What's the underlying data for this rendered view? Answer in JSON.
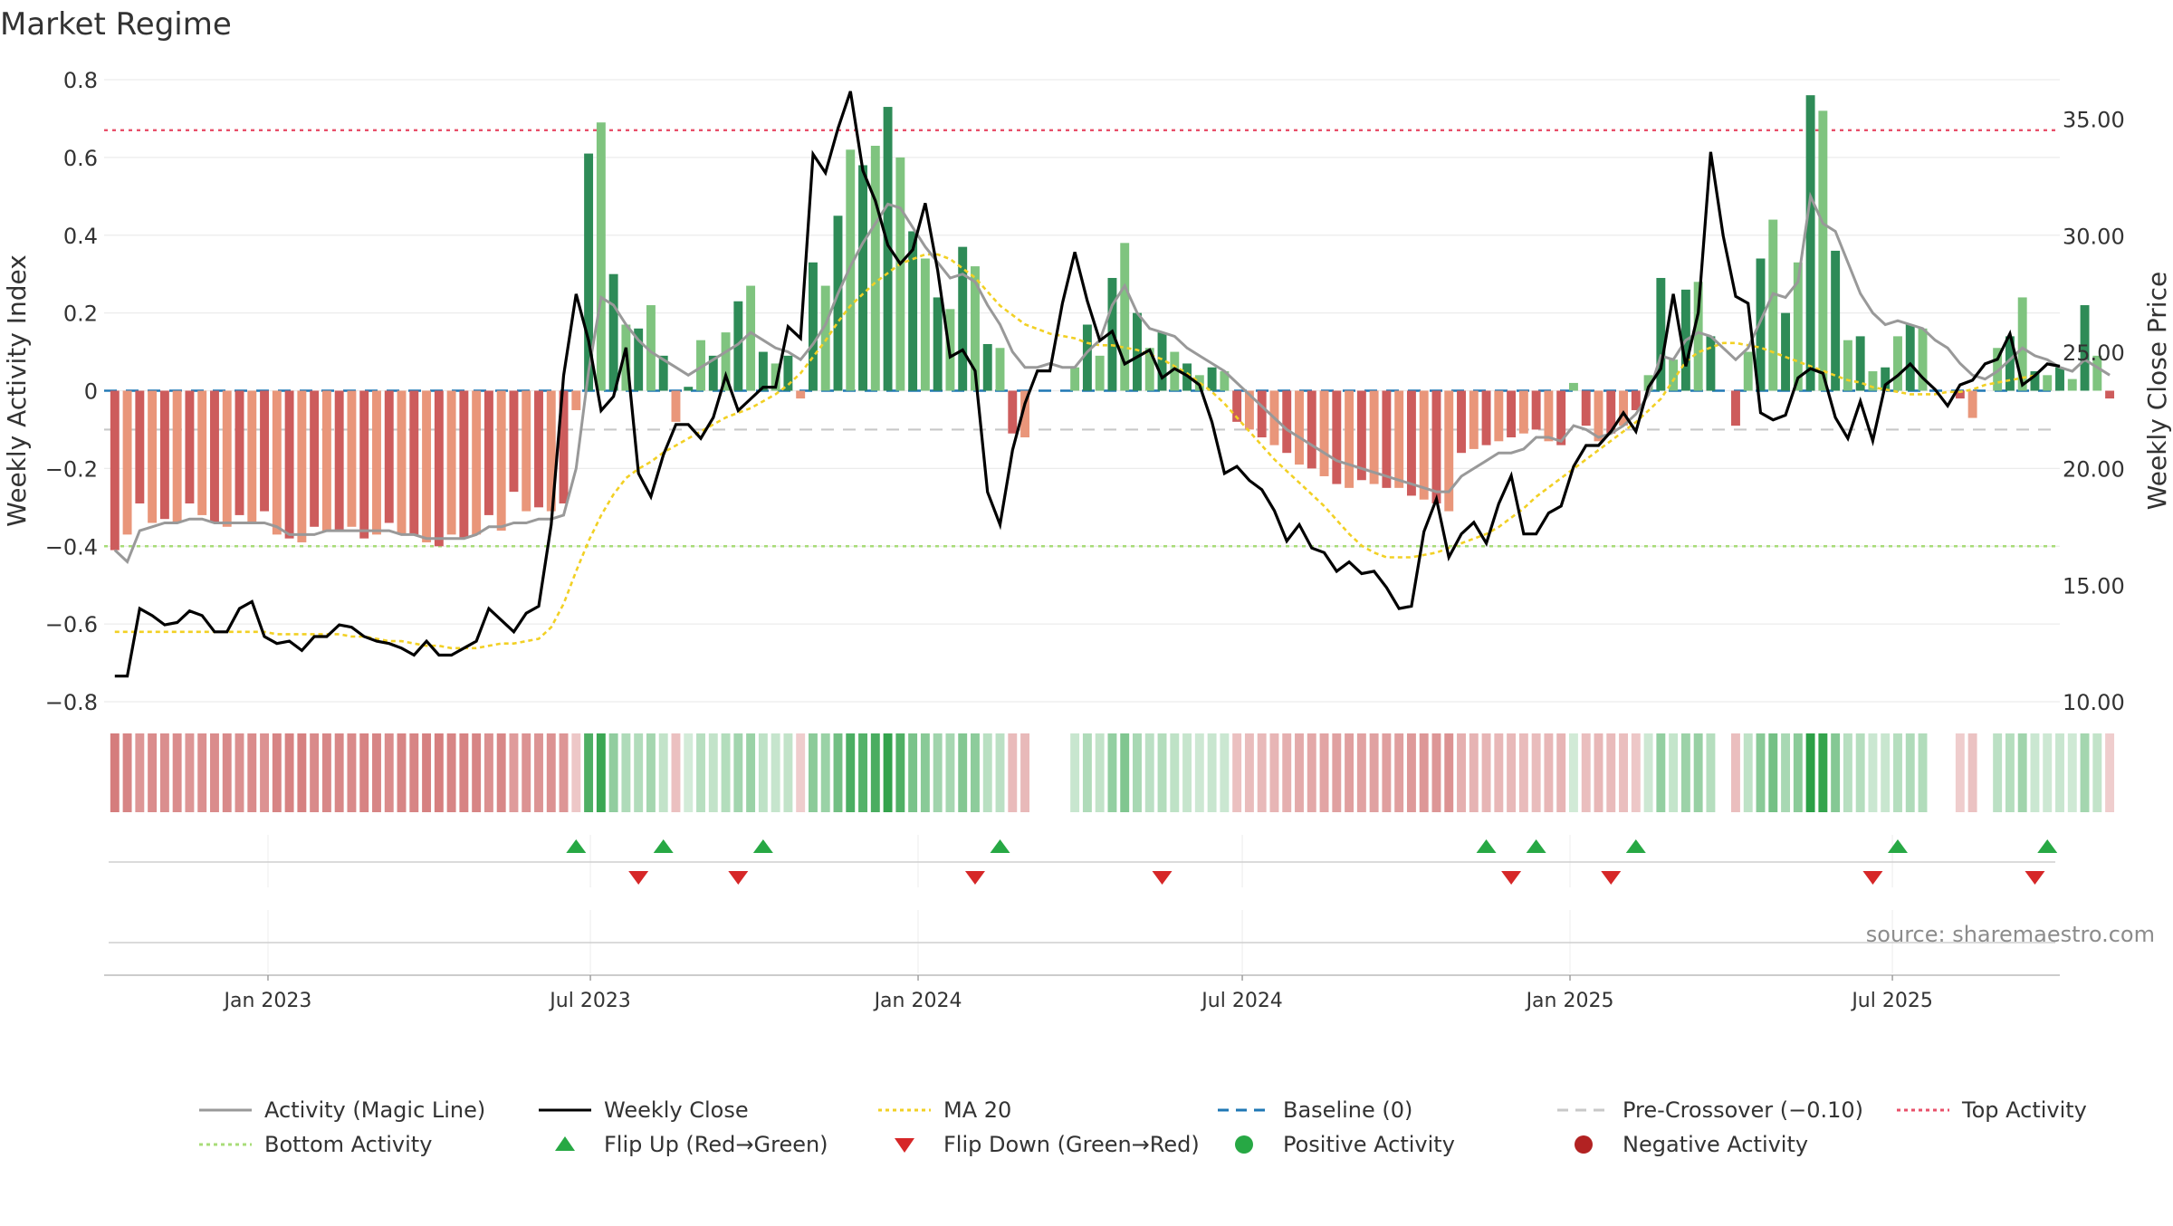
{
  "title": "Market Regime",
  "source": "source: sharemaestro.com",
  "colors": {
    "pos_dark": "#2e8b57",
    "pos_light": "#7fc47f",
    "neg_dark": "#cd5c5c",
    "neg_light": "#e9967a",
    "magic": "#999999",
    "close": "#000000",
    "ma20": "#f2d024",
    "baseline": "#1f77b4",
    "pre": "#c8c8c8",
    "top": "#e8506a",
    "bottom": "#a8dc78",
    "flip_up": "#27a844",
    "flip_down": "#d62728"
  },
  "chart_data": {
    "type": "bar",
    "title": "Market Regime",
    "left_axis": {
      "label": "Weekly Activity Index",
      "range": [
        -0.8,
        0.8
      ],
      "ticks": [
        "0.8",
        "0.6",
        "0.4",
        "0.2",
        "0",
        "−0.2",
        "−0.4",
        "−0.6",
        "−0.8"
      ]
    },
    "right_axis": {
      "label": "Weekly Close Price",
      "range": [
        10,
        36.7
      ],
      "ticks": [
        "35.00",
        "30.00",
        "25.00",
        "20.00",
        "15.00",
        "10.00"
      ]
    },
    "x_range": [
      "2022-10-01",
      "2025-10-03"
    ],
    "x_ticks": [
      {
        "label": "Jan 2023",
        "date": "2023-01-01"
      },
      {
        "label": "Jul 2023",
        "date": "2023-07-01"
      },
      {
        "label": "Jan 2024",
        "date": "2024-01-01"
      },
      {
        "label": "Jul 2024",
        "date": "2024-07-01"
      },
      {
        "label": "Jan 2025",
        "date": "2025-01-01"
      },
      {
        "label": "Jul 2025",
        "date": "2025-07-01"
      }
    ],
    "reference_lines": {
      "baseline": 0,
      "pre_crossover": -0.1,
      "top_activity": 0.67,
      "bottom_activity": -0.4
    },
    "week_start": "2022-10-07",
    "activity": [
      -0.41,
      -0.37,
      -0.29,
      -0.34,
      -0.33,
      -0.34,
      -0.29,
      -0.32,
      -0.34,
      -0.35,
      -0.32,
      -0.34,
      -0.31,
      -0.37,
      -0.38,
      -0.39,
      -0.35,
      -0.36,
      -0.36,
      -0.35,
      -0.38,
      -0.37,
      -0.34,
      -0.37,
      -0.37,
      -0.39,
      -0.4,
      -0.37,
      -0.38,
      -0.37,
      -0.32,
      -0.36,
      -0.26,
      -0.31,
      -0.3,
      -0.31,
      -0.29,
      -0.05,
      0.61,
      0.69,
      0.3,
      0.17,
      0.16,
      0.22,
      0.09,
      -0.08,
      0.01,
      0.13,
      0.09,
      0.15,
      0.23,
      0.27,
      0.1,
      0.07,
      0.09,
      -0.02,
      0.33,
      0.27,
      0.45,
      0.62,
      0.58,
      0.63,
      0.73,
      0.6,
      0.41,
      0.34,
      0.24,
      0.21,
      0.37,
      0.32,
      0.12,
      0.11,
      -0.11,
      -0.12,
      0.0,
      0.0,
      0.0,
      0.06,
      0.17,
      0.09,
      0.29,
      0.38,
      0.2,
      0.11,
      0.15,
      0.1,
      0.07,
      0.04,
      0.06,
      0.05,
      -0.08,
      -0.1,
      -0.12,
      -0.14,
      -0.16,
      -0.19,
      -0.2,
      -0.22,
      -0.24,
      -0.25,
      -0.23,
      -0.24,
      -0.25,
      -0.25,
      -0.27,
      -0.28,
      -0.29,
      -0.31,
      -0.16,
      -0.15,
      -0.14,
      -0.13,
      -0.12,
      -0.11,
      -0.1,
      -0.13,
      -0.14,
      0.02,
      -0.09,
      -0.13,
      -0.11,
      -0.09,
      -0.05,
      0.04,
      0.29,
      0.08,
      0.26,
      0.28,
      0.14,
      0.0,
      -0.09,
      0.1,
      0.34,
      0.44,
      0.2,
      0.33,
      0.76,
      0.72,
      0.36,
      0.13,
      0.14,
      0.05,
      0.06,
      0.14,
      0.17,
      0.16,
      0.0,
      0.0,
      -0.02,
      -0.07,
      0.0,
      0.11,
      0.14,
      0.24,
      0.05,
      0.04,
      0.06,
      0.03,
      0.22,
      0.09,
      -0.02
    ],
    "magic_line": [
      -0.41,
      -0.44,
      -0.36,
      -0.35,
      -0.34,
      -0.34,
      -0.33,
      -0.33,
      -0.34,
      -0.34,
      -0.34,
      -0.34,
      -0.34,
      -0.35,
      -0.37,
      -0.37,
      -0.37,
      -0.36,
      -0.36,
      -0.36,
      -0.36,
      -0.36,
      -0.36,
      -0.37,
      -0.37,
      -0.38,
      -0.38,
      -0.38,
      -0.38,
      -0.37,
      -0.35,
      -0.35,
      -0.34,
      -0.34,
      -0.33,
      -0.33,
      -0.32,
      -0.2,
      0.05,
      0.24,
      0.22,
      0.17,
      0.13,
      0.1,
      0.08,
      0.06,
      0.04,
      0.06,
      0.08,
      0.1,
      0.12,
      0.15,
      0.13,
      0.11,
      0.1,
      0.08,
      0.12,
      0.17,
      0.25,
      0.32,
      0.38,
      0.43,
      0.48,
      0.47,
      0.42,
      0.37,
      0.33,
      0.29,
      0.3,
      0.28,
      0.22,
      0.17,
      0.1,
      0.06,
      0.06,
      0.07,
      0.06,
      0.06,
      0.1,
      0.13,
      0.22,
      0.27,
      0.2,
      0.16,
      0.15,
      0.14,
      0.11,
      0.09,
      0.07,
      0.05,
      0.02,
      -0.01,
      -0.04,
      -0.07,
      -0.1,
      -0.12,
      -0.14,
      -0.16,
      -0.18,
      -0.19,
      -0.2,
      -0.21,
      -0.22,
      -0.23,
      -0.24,
      -0.25,
      -0.26,
      -0.26,
      -0.22,
      -0.2,
      -0.18,
      -0.16,
      -0.16,
      -0.15,
      -0.12,
      -0.12,
      -0.13,
      -0.09,
      -0.1,
      -0.12,
      -0.11,
      -0.09,
      -0.06,
      -0.01,
      0.09,
      0.08,
      0.13,
      0.15,
      0.14,
      0.11,
      0.08,
      0.11,
      0.18,
      0.25,
      0.24,
      0.28,
      0.5,
      0.43,
      0.41,
      0.33,
      0.25,
      0.2,
      0.17,
      0.18,
      0.17,
      0.16,
      0.13,
      0.11,
      0.07,
      0.04,
      0.03,
      0.05,
      0.08,
      0.11,
      0.09,
      0.08,
      0.06,
      0.05,
      0.08,
      0.06,
      0.04
    ],
    "weekly_close": [
      11.1,
      11.1,
      14.0,
      13.7,
      13.3,
      13.4,
      13.9,
      13.7,
      13.0,
      13.0,
      14.0,
      14.3,
      12.8,
      12.5,
      12.6,
      12.2,
      12.8,
      12.8,
      13.3,
      13.2,
      12.8,
      12.6,
      12.5,
      12.3,
      12.0,
      12.6,
      12.0,
      12.0,
      12.3,
      12.6,
      14.0,
      13.5,
      13.0,
      13.8,
      14.1,
      17.6,
      24.0,
      27.5,
      25.5,
      22.5,
      23.1,
      25.2,
      19.8,
      18.8,
      20.6,
      21.9,
      21.9,
      21.3,
      22.2,
      24.0,
      22.5,
      23.0,
      23.5,
      23.5,
      26.1,
      25.6,
      33.5,
      32.7,
      34.6,
      36.2,
      32.8,
      31.5,
      29.6,
      28.8,
      29.4,
      31.4,
      28.5,
      24.8,
      25.1,
      24.2,
      19.0,
      17.6,
      20.8,
      22.8,
      24.2,
      24.2,
      27.1,
      29.3,
      27.2,
      25.5,
      25.9,
      24.5,
      24.8,
      25.1,
      23.9,
      24.3,
      24.0,
      23.6,
      22.0,
      19.8,
      20.1,
      19.5,
      19.1,
      18.2,
      16.9,
      17.6,
      16.6,
      16.4,
      15.6,
      16.0,
      15.5,
      15.6,
      14.9,
      14.0,
      14.1,
      17.3,
      18.7,
      16.2,
      17.2,
      17.7,
      16.8,
      18.5,
      19.7,
      17.2,
      17.2,
      18.1,
      18.4,
      20.1,
      21.0,
      21.0,
      21.6,
      22.4,
      21.6,
      23.5,
      24.3,
      27.5,
      24.4,
      26.7,
      33.6,
      30.0,
      27.4,
      27.1,
      22.4,
      22.1,
      22.3,
      23.9,
      24.3,
      24.1,
      22.2,
      21.3,
      22.9,
      21.2,
      23.6,
      24.0,
      24.5,
      23.9,
      23.4,
      22.7,
      23.6,
      23.8,
      24.5,
      24.7,
      25.8,
      23.6,
      24.0,
      24.5,
      24.4
    ],
    "ma20": [
      13.0,
      13.0,
      13.0,
      13.0,
      13.0,
      13.0,
      13.0,
      13.0,
      13.0,
      13.0,
      13.0,
      13.0,
      13.0,
      12.9,
      12.9,
      12.9,
      12.9,
      12.9,
      12.9,
      12.8,
      12.8,
      12.7,
      12.6,
      12.6,
      12.5,
      12.4,
      12.4,
      12.3,
      12.3,
      12.3,
      12.4,
      12.5,
      12.5,
      12.6,
      12.7,
      13.2,
      14.2,
      15.6,
      16.9,
      18.0,
      18.9,
      19.6,
      20.0,
      20.3,
      20.7,
      21.0,
      21.3,
      21.6,
      21.9,
      22.2,
      22.4,
      22.6,
      22.9,
      23.2,
      23.6,
      24.1,
      24.8,
      25.5,
      26.3,
      27.0,
      27.5,
      28.0,
      28.4,
      28.8,
      29.0,
      29.2,
      29.2,
      29.0,
      28.6,
      28.2,
      27.6,
      27.0,
      26.6,
      26.2,
      26.0,
      25.8,
      25.7,
      25.6,
      25.4,
      25.3,
      25.3,
      25.2,
      25.1,
      24.9,
      24.7,
      24.4,
      24.1,
      23.7,
      23.3,
      22.8,
      22.2,
      21.6,
      21.0,
      20.4,
      19.9,
      19.4,
      18.9,
      18.4,
      17.8,
      17.2,
      16.7,
      16.4,
      16.2,
      16.2,
      16.2,
      16.3,
      16.4,
      16.6,
      16.8,
      17.0,
      17.2,
      17.5,
      17.9,
      18.3,
      18.8,
      19.2,
      19.6,
      20.0,
      20.4,
      20.8,
      21.2,
      21.6,
      22.0,
      22.5,
      23.0,
      23.8,
      24.6,
      25.0,
      25.2,
      25.4,
      25.4,
      25.3,
      25.2,
      25.0,
      24.8,
      24.6,
      24.4,
      24.2,
      24.0,
      23.8,
      23.7,
      23.5,
      23.4,
      23.3,
      23.2,
      23.2,
      23.2,
      23.3,
      23.3,
      23.4,
      23.6,
      23.7,
      23.8,
      23.9,
      24.0
    ],
    "flips": [
      {
        "date": "2023-06-23",
        "type": "up"
      },
      {
        "date": "2023-07-28",
        "type": "down"
      },
      {
        "date": "2023-08-11",
        "type": "up"
      },
      {
        "date": "2023-09-22",
        "type": "down"
      },
      {
        "date": "2023-10-06",
        "type": "up"
      },
      {
        "date": "2024-02-02",
        "type": "down"
      },
      {
        "date": "2024-02-16",
        "type": "up"
      },
      {
        "date": "2024-05-17",
        "type": "down"
      },
      {
        "date": "2024-11-15",
        "type": "up"
      },
      {
        "date": "2024-11-29",
        "type": "down"
      },
      {
        "date": "2024-12-13",
        "type": "up"
      },
      {
        "date": "2025-01-24",
        "type": "down"
      },
      {
        "date": "2025-02-07",
        "type": "up"
      },
      {
        "date": "2025-06-20",
        "type": "down"
      },
      {
        "date": "2025-07-04",
        "type": "up"
      },
      {
        "date": "2025-09-19",
        "type": "down"
      },
      {
        "date": "2025-09-26",
        "type": "up"
      }
    ],
    "legend": [
      {
        "label": "Activity (Magic Line)",
        "kind": "line",
        "color": "#999999",
        "dash": ""
      },
      {
        "label": "Weekly Close",
        "kind": "line",
        "color": "#000000",
        "dash": ""
      },
      {
        "label": "MA 20",
        "kind": "line",
        "color": "#f2d024",
        "dash": "4,4"
      },
      {
        "label": "Baseline (0)",
        "kind": "line",
        "color": "#1f77b4",
        "dash": "12,8"
      },
      {
        "label": "Pre-Crossover (−0.10)",
        "kind": "line",
        "color": "#c8c8c8",
        "dash": "12,8"
      },
      {
        "label": "Top Activity",
        "kind": "line",
        "color": "#e8506a",
        "dash": "4,4"
      },
      {
        "label": "Bottom Activity",
        "kind": "line",
        "color": "#a8dc78",
        "dash": "4,4"
      },
      {
        "label": "Flip Up (Red→Green)",
        "kind": "tri-up",
        "color": "#27a844"
      },
      {
        "label": "Flip Down (Green→Red)",
        "kind": "tri-down",
        "color": "#d62728"
      },
      {
        "label": "Positive Activity",
        "kind": "dot",
        "color": "#27a844"
      },
      {
        "label": "Negative Activity",
        "kind": "dot",
        "color": "#b22222"
      }
    ]
  }
}
